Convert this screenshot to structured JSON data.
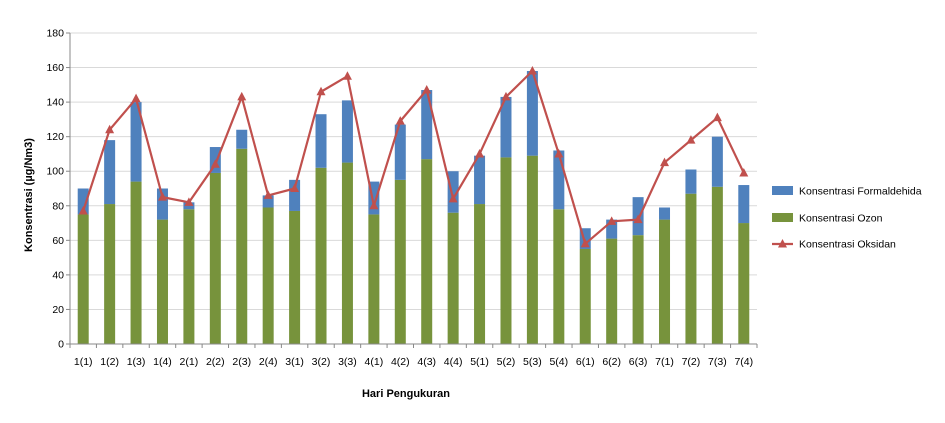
{
  "chart_data": {
    "type": "bar",
    "stacked": true,
    "categories": [
      "1(1)",
      "1(2)",
      "1(3)",
      "1(4)",
      "2(1)",
      "2(2)",
      "2(3)",
      "2(4)",
      "3(1)",
      "3(2)",
      "3(3)",
      "4(1)",
      "4(2)",
      "4(3)",
      "4(4)",
      "5(1)",
      "5(2)",
      "5(3)",
      "5(4)",
      "6(1)",
      "6(2)",
      "6(3)",
      "7(1)",
      "7(2)",
      "7(3)",
      "7(4)"
    ],
    "series": [
      {
        "name": "Konsentrasi Ozon",
        "kind": "bar",
        "color": "#77933c",
        "values": [
          75,
          81,
          94,
          72,
          78,
          99,
          113,
          79,
          77,
          102,
          105,
          75,
          95,
          107,
          76,
          81,
          108,
          109,
          78,
          55,
          61,
          63,
          72,
          87,
          91,
          70
        ]
      },
      {
        "name": "Konsentrasi Formaldehida",
        "kind": "bar",
        "color": "#4f81bd",
        "values": [
          15,
          37,
          46,
          18,
          4,
          15,
          11,
          7,
          18,
          31,
          36,
          19,
          32,
          40,
          24,
          28,
          35,
          49,
          34,
          12,
          11,
          22,
          7,
          14,
          29,
          22
        ]
      },
      {
        "name": "Konsentrasi Oksidan",
        "kind": "line",
        "color": "#c0504d",
        "values": [
          77,
          124,
          142,
          85,
          82,
          104,
          143,
          86,
          90,
          146,
          155,
          80,
          129,
          147,
          84,
          110,
          143,
          158,
          110,
          58,
          71,
          72,
          105,
          118,
          131,
          99
        ]
      }
    ],
    "xlabel": "Hari Pengukuran",
    "ylabel": "Konsentrasi  (µg/Nm3)",
    "ylim": [
      0,
      180
    ],
    "yticks": [
      0,
      20,
      40,
      60,
      80,
      100,
      120,
      140,
      160,
      180
    ],
    "grid": true,
    "legend_position": "right"
  }
}
